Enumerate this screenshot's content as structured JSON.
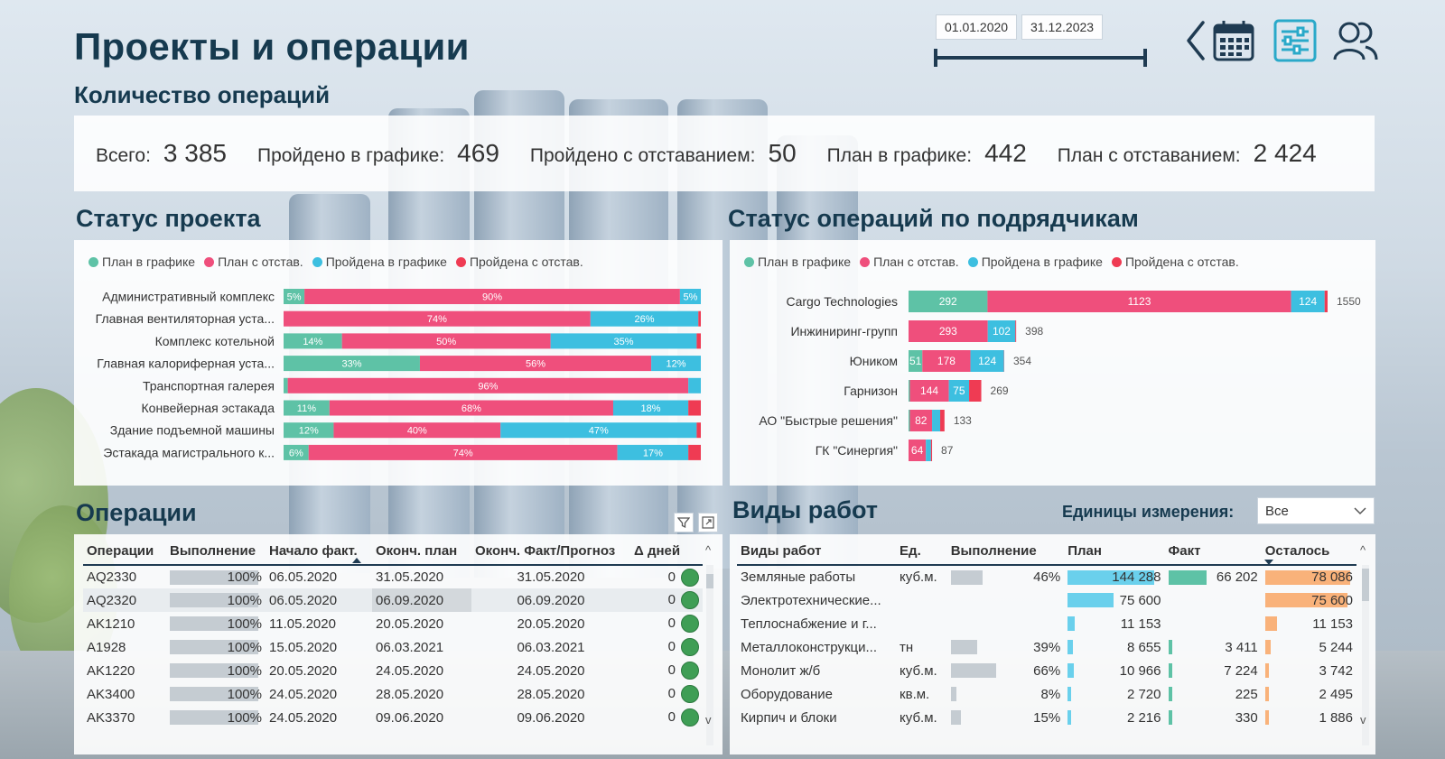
{
  "header": {
    "title": "Проекты и операции",
    "subtitle": "Количество операций",
    "date_start": "01.01.2020",
    "date_end": "31.12.2023",
    "icons": [
      "chevron-left-icon",
      "calendar-icon",
      "filter-settings-icon",
      "users-icon"
    ]
  },
  "kpis": [
    {
      "label": "Всего:",
      "value": "3 385"
    },
    {
      "label": "Пройдено в графике:",
      "value": "469"
    },
    {
      "label": "Пройдено с отставанием:",
      "value": "50"
    },
    {
      "label": "План в графике:",
      "value": "442"
    },
    {
      "label": "План с отставанием:",
      "value": "2 424"
    }
  ],
  "colors": {
    "plan_on_time": "#5ec2a6",
    "plan_late": "#ef4f7c",
    "done_on_time": "#3dbfe0",
    "done_late": "#ef3b53"
  },
  "project_status": {
    "title": "Статус проекта",
    "legend": [
      "План в графике",
      "План с отстав.",
      "Пройдена в графике",
      "Пройдена с отстав."
    ],
    "chart_data": {
      "type": "bar",
      "orientation": "horizontal-stacked-100",
      "categories": [
        "Административный комплекс",
        "Главная вентиляторная уста...",
        "Комплекс котельной",
        "Главная калориферная уста...",
        "Транспортная галерея",
        "Конвейерная эстакада",
        "Здание подъемной машины",
        "Эстакада магистрального к..."
      ],
      "series": [
        {
          "name": "План в графике",
          "values": [
            5,
            0,
            14,
            33,
            1,
            11,
            12,
            6
          ],
          "labels": [
            "5%",
            "",
            "14%",
            "33%",
            "",
            "11%",
            "12%",
            "6%"
          ]
        },
        {
          "name": "План с отстав.",
          "values": [
            90,
            74,
            50,
            56,
            96,
            68,
            40,
            74
          ],
          "labels": [
            "90%",
            "74%",
            "50%",
            "56%",
            "96%",
            "68%",
            "40%",
            "74%"
          ]
        },
        {
          "name": "Пройдена в графике",
          "values": [
            5,
            26,
            35,
            12,
            3,
            18,
            47,
            17
          ],
          "labels": [
            "5%",
            "26%",
            "35%",
            "12%",
            "",
            "18%",
            "47%",
            "17%"
          ]
        },
        {
          "name": "Пройдена с отстав.",
          "values": [
            0,
            0.6,
            1,
            0,
            0,
            3,
            1,
            3
          ],
          "labels": [
            "",
            "",
            "",
            "",
            "",
            "",
            "",
            ""
          ]
        }
      ]
    }
  },
  "contractor_status": {
    "title": "Статус операций по подрядчикам",
    "legend": [
      "План в графике",
      "План с отстав.",
      "Пройдена в графике",
      "Пройдена с отстав."
    ],
    "chart_data": {
      "type": "bar",
      "orientation": "horizontal-stacked",
      "categories": [
        "Cargo Technologies",
        "Инжиниринг-групп",
        "Юником",
        "Гарнизон",
        "АО \"Быстрые решения\"",
        "ГК \"Синергия\""
      ],
      "totals": [
        1550,
        398,
        354,
        269,
        133,
        87
      ],
      "series": [
        {
          "name": "План в графике",
          "values": [
            292,
            0,
            51,
            5,
            5,
            0
          ],
          "labels": [
            "292",
            "",
            "51",
            "",
            "",
            ""
          ]
        },
        {
          "name": "План с отстав.",
          "values": [
            1123,
            293,
            178,
            144,
            82,
            64
          ],
          "labels": [
            "1123",
            "293",
            "178",
            "144",
            "82",
            "64"
          ]
        },
        {
          "name": "Пройдена в графике",
          "values": [
            124,
            102,
            124,
            75,
            30,
            19
          ],
          "labels": [
            "124",
            "102",
            "124",
            "75",
            "",
            ""
          ]
        },
        {
          "name": "Пройдена с отстав.",
          "values": [
            11,
            3,
            1,
            45,
            16,
            4
          ],
          "labels": [
            "",
            "",
            "",
            "",
            "",
            ""
          ]
        }
      ]
    }
  },
  "operations": {
    "title": "Операции",
    "columns": [
      "Операции",
      "Выполнение",
      "Начало факт.",
      "Оконч. план",
      "Оконч. Факт/Прогноз",
      "Δ дней"
    ],
    "rows": [
      {
        "op": "AQ2330",
        "pct": "100%",
        "pct_val": 100,
        "start": "06.05.2020",
        "plan_end": "31.05.2020",
        "fact_end": "31.05.2020",
        "delta": "0"
      },
      {
        "op": "AQ2320",
        "pct": "100%",
        "pct_val": 100,
        "start": "06.05.2020",
        "plan_end": "06.09.2020",
        "fact_end": "06.09.2020",
        "delta": "0"
      },
      {
        "op": "AK1210",
        "pct": "100%",
        "pct_val": 100,
        "start": "11.05.2020",
        "plan_end": "20.05.2020",
        "fact_end": "20.05.2020",
        "delta": "0"
      },
      {
        "op": "A1928",
        "pct": "100%",
        "pct_val": 100,
        "start": "15.05.2020",
        "plan_end": "06.03.2021",
        "fact_end": "06.03.2021",
        "delta": "0"
      },
      {
        "op": "AK1220",
        "pct": "100%",
        "pct_val": 100,
        "start": "20.05.2020",
        "plan_end": "24.05.2020",
        "fact_end": "24.05.2020",
        "delta": "0"
      },
      {
        "op": "AK3400",
        "pct": "100%",
        "pct_val": 100,
        "start": "24.05.2020",
        "plan_end": "28.05.2020",
        "fact_end": "28.05.2020",
        "delta": "0"
      },
      {
        "op": "AK3370",
        "pct": "100%",
        "pct_val": 100,
        "start": "24.05.2020",
        "plan_end": "09.06.2020",
        "fact_end": "09.06.2020",
        "delta": "0"
      }
    ]
  },
  "works": {
    "title": "Виды работ",
    "units_label": "Единицы измерения:",
    "units_value": "Все",
    "columns": [
      "Виды работ",
      "Ед.",
      "Выполнение",
      "План",
      "Факт",
      "Осталось"
    ],
    "max_plan": 144288,
    "rows": [
      {
        "name": "Земляные работы",
        "unit": "куб.м.",
        "pct": "46%",
        "pct_val": 46,
        "plan": "144 288",
        "plan_val": 144288,
        "fact": "66 202",
        "fact_val": 66202,
        "left": "78 086",
        "left_val": 78086
      },
      {
        "name": "Электротехнические...",
        "unit": "",
        "pct": "",
        "pct_val": 0,
        "plan": "75 600",
        "plan_val": 75600,
        "fact": "",
        "fact_val": 0,
        "left": "75 600",
        "left_val": 75600
      },
      {
        "name": "Теплоснабжение и г...",
        "unit": "",
        "pct": "",
        "pct_val": 0,
        "plan": "11 153",
        "plan_val": 11153,
        "fact": "",
        "fact_val": 0,
        "left": "11 153",
        "left_val": 11153
      },
      {
        "name": "Металлоконструкци...",
        "unit": "тн",
        "pct": "39%",
        "pct_val": 39,
        "plan": "8 655",
        "plan_val": 8655,
        "fact": "3 411",
        "fact_val": 3411,
        "left": "5 244",
        "left_val": 5244
      },
      {
        "name": "Монолит ж/б",
        "unit": "куб.м.",
        "pct": "66%",
        "pct_val": 66,
        "plan": "10 966",
        "plan_val": 10966,
        "fact": "7 224",
        "fact_val": 7224,
        "left": "3 742",
        "left_val": 3742
      },
      {
        "name": "Оборудование",
        "unit": "кв.м.",
        "pct": "8%",
        "pct_val": 8,
        "plan": "2 720",
        "plan_val": 2720,
        "fact": "225",
        "fact_val": 225,
        "left": "2 495",
        "left_val": 2495
      },
      {
        "name": "Кирпич и блоки",
        "unit": "куб.м.",
        "pct": "15%",
        "pct_val": 15,
        "plan": "2 216",
        "plan_val": 2216,
        "fact": "330",
        "fact_val": 330,
        "left": "1 886",
        "left_val": 1886
      }
    ]
  }
}
